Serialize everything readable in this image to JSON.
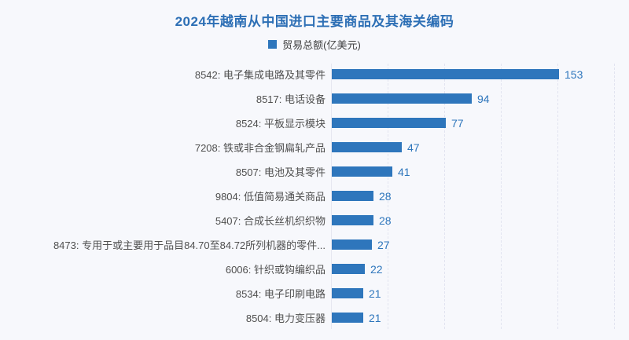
{
  "title": "2024年越南从中国进口主要商品及其海关编码",
  "legend": {
    "label": "贸易总额(亿美元)"
  },
  "colors": {
    "bar": "#2e76bc",
    "title": "#2d6fb5",
    "value_label": "#2e76bc",
    "category_label": "#4f4f4f",
    "background": "#f7f8fc",
    "gridline": "#e2e4f0"
  },
  "chart_data": {
    "type": "bar",
    "orientation": "horizontal",
    "title": "2024年越南从中国进口主要商品及其海关编码",
    "legend_entries": [
      "贸易总额(亿美元)"
    ],
    "legend_position": "top-center",
    "grid": "vertical-dashed",
    "xlim": [
      0,
      160
    ],
    "categories": [
      "8542: 电子集成电路及其零件",
      "8517: 电话设备",
      "8524: 平板显示模块",
      "7208: 铁或非合金钢扁轧产品",
      "8507: 电池及其零件",
      "9804: 低值简易通关商品",
      "5407: 合成长丝机织织物",
      "8473: 专用于或主要用于品目84.70至84.72所列机器的零件...",
      "6006: 针织或钩编织品",
      "8534: 电子印刷电路",
      "8504: 电力变压器"
    ],
    "values": [
      153,
      94,
      77,
      47,
      41,
      28,
      28,
      27,
      22,
      21,
      21
    ],
    "value_labels": [
      "153",
      "94",
      "77",
      "47",
      "41",
      "28",
      "28",
      "27",
      "22",
      "21",
      "21"
    ]
  }
}
